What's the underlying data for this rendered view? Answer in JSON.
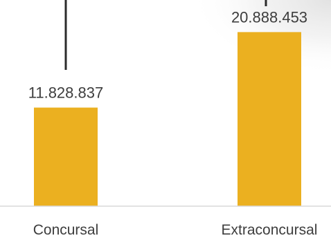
{
  "chart_data": {
    "type": "bar",
    "categories": [
      "Concursal",
      "Extraconcursal"
    ],
    "values": [
      11828837,
      20888453
    ],
    "value_labels": [
      "11.828.837",
      "20.888.453"
    ],
    "ylim": [
      0,
      22500000
    ],
    "grid": false,
    "legend": "none",
    "bar_color": "#EBB020",
    "axis_color": "#d9d9d9",
    "text_color": "#3d3d3d",
    "leader_line_color": "#2b2b2b",
    "corner_shade_color": "#eeeeee"
  }
}
